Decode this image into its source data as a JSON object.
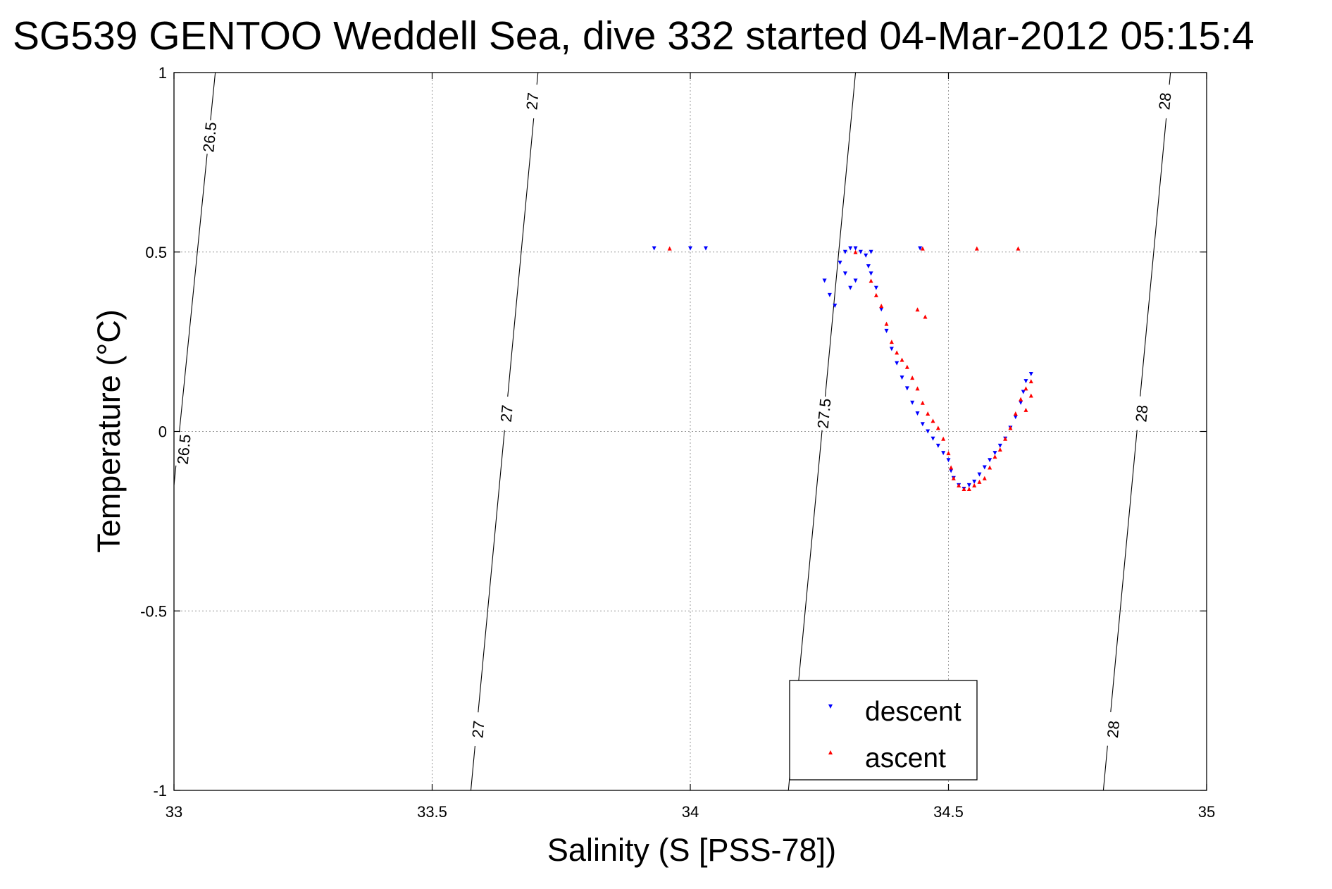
{
  "chart_data": {
    "type": "scatter",
    "title": "SG539 GENTOO Weddell Sea, dive 332 started 04-Mar-2012 05:15:4",
    "xlabel": "Salinity (S [PSS-78])",
    "ylabel": "Temperature (°C)",
    "xlim": [
      33,
      35
    ],
    "ylim": [
      -1,
      1
    ],
    "x_ticks": [
      33,
      33.5,
      34,
      34.5,
      35
    ],
    "x_tick_labels": [
      "33",
      "33.5",
      "34",
      "34.5",
      "35"
    ],
    "y_ticks": [
      -1,
      -0.5,
      0,
      0.5,
      1
    ],
    "y_tick_labels": [
      "-1",
      "-0.5",
      "0",
      "0.5",
      "1"
    ],
    "grid": true,
    "legend_position": "bottom-center",
    "isopycnals": [
      {
        "label": "26.5",
        "points": [
          [
            33.0,
            -0.15
          ],
          [
            33.08,
            1.0
          ]
        ],
        "label_positions": [
          [
            33.07,
            0.82
          ],
          [
            33.02,
            -0.05
          ]
        ]
      },
      {
        "label": "27",
        "points": [
          [
            33.575,
            -1.0
          ],
          [
            33.705,
            1.0
          ]
        ],
        "label_positions": [
          [
            33.695,
            0.92
          ],
          [
            33.645,
            0.05
          ],
          [
            33.59,
            -0.83
          ]
        ]
      },
      {
        "label": "27.5",
        "points": [
          [
            34.19,
            -1.0
          ],
          [
            34.32,
            1.0
          ]
        ],
        "label_positions": [
          [
            34.26,
            0.05
          ]
        ]
      },
      {
        "label": "28",
        "points": [
          [
            34.8,
            -1.0
          ],
          [
            34.93,
            1.0
          ]
        ],
        "label_positions": [
          [
            34.92,
            0.92
          ],
          [
            34.875,
            0.05
          ],
          [
            34.82,
            -0.83
          ]
        ]
      }
    ],
    "series": [
      {
        "name": "descent",
        "color": "#0000ff",
        "marker": "triangle-down",
        "x": [
          33.93,
          34.0,
          34.03,
          34.26,
          34.27,
          34.28,
          34.29,
          34.3,
          34.31,
          34.32,
          34.33,
          34.34,
          34.35,
          34.345,
          34.35,
          34.36,
          34.37,
          34.38,
          34.39,
          34.4,
          34.41,
          34.42,
          34.43,
          34.44,
          34.45,
          34.46,
          34.47,
          34.48,
          34.49,
          34.5,
          34.505,
          34.51,
          34.52,
          34.53,
          34.54,
          34.55,
          34.56,
          34.57,
          34.58,
          34.59,
          34.6,
          34.61,
          34.62,
          34.63,
          34.64,
          34.645,
          34.65,
          34.66,
          34.445,
          34.3,
          34.31,
          34.32
        ],
        "y": [
          0.51,
          0.51,
          0.51,
          0.42,
          0.38,
          0.35,
          0.47,
          0.5,
          0.51,
          0.51,
          0.5,
          0.49,
          0.5,
          0.46,
          0.44,
          0.4,
          0.34,
          0.28,
          0.23,
          0.19,
          0.15,
          0.12,
          0.08,
          0.05,
          0.02,
          0.0,
          -0.02,
          -0.04,
          -0.06,
          -0.08,
          -0.11,
          -0.13,
          -0.15,
          -0.16,
          -0.15,
          -0.14,
          -0.12,
          -0.1,
          -0.08,
          -0.06,
          -0.04,
          -0.02,
          0.01,
          0.04,
          0.08,
          0.11,
          0.14,
          0.16,
          0.51,
          0.44,
          0.4,
          0.42
        ]
      },
      {
        "name": "ascent",
        "color": "#ff0000",
        "marker": "triangle-up",
        "x": [
          33.96,
          34.45,
          34.555,
          34.635,
          34.32,
          34.35,
          34.36,
          34.37,
          34.38,
          34.39,
          34.4,
          34.41,
          34.42,
          34.43,
          34.44,
          34.45,
          34.46,
          34.47,
          34.48,
          34.49,
          34.5,
          34.505,
          34.51,
          34.52,
          34.53,
          34.54,
          34.55,
          34.56,
          34.57,
          34.58,
          34.59,
          34.6,
          34.61,
          34.62,
          34.63,
          34.64,
          34.65,
          34.66,
          34.66,
          34.65,
          34.44,
          34.455
        ],
        "y": [
          0.51,
          0.51,
          0.51,
          0.51,
          0.5,
          0.42,
          0.38,
          0.35,
          0.3,
          0.25,
          0.22,
          0.2,
          0.18,
          0.15,
          0.12,
          0.08,
          0.05,
          0.03,
          0.01,
          -0.02,
          -0.06,
          -0.1,
          -0.13,
          -0.15,
          -0.16,
          -0.16,
          -0.15,
          -0.14,
          -0.13,
          -0.1,
          -0.07,
          -0.05,
          -0.02,
          0.01,
          0.05,
          0.09,
          0.12,
          0.14,
          0.1,
          0.06,
          0.34,
          0.32
        ]
      }
    ]
  }
}
